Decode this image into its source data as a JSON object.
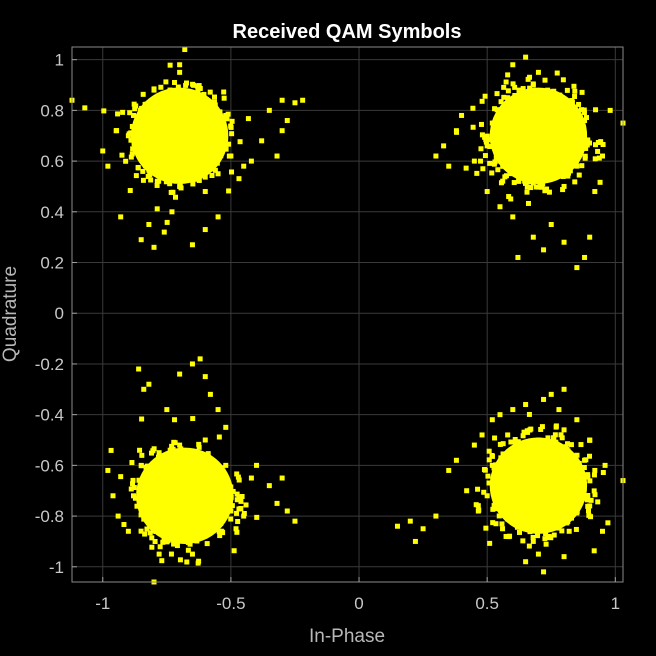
{
  "chart_data": {
    "type": "scatter",
    "title": "Received QAM Symbols",
    "xlabel": "In-Phase",
    "ylabel": "Quadrature",
    "xlim": [
      -1.12,
      1.03
    ],
    "ylim": [
      -1.06,
      1.05
    ],
    "xticks": [
      -1,
      -0.5,
      0,
      0.5,
      1
    ],
    "xtick_labels": [
      "-1",
      "-0.5",
      "0",
      "0.5",
      "1"
    ],
    "yticks": [
      1,
      0.8,
      0.6,
      0.4,
      0.2,
      0,
      -0.2,
      -0.4,
      -0.6,
      -0.8,
      -1
    ],
    "ytick_labels": [
      "1",
      "0.8",
      "0.6",
      "0.4",
      "0.2",
      "0",
      "-0.2",
      "-0.4",
      "-0.6",
      "-0.8",
      "-1"
    ],
    "grid": true,
    "background": "#000000",
    "marker_color": "#ffff00",
    "clusters": [
      {
        "name": "cluster-top-left",
        "center": [
          -0.7,
          0.7
        ],
        "core": [
          [
            -0.88,
            0.78
          ],
          [
            -0.85,
            0.62
          ],
          [
            -0.8,
            0.88
          ],
          [
            -0.78,
            0.55
          ],
          [
            -0.75,
            0.72
          ],
          [
            -0.72,
            0.91
          ],
          [
            -0.7,
            0.5
          ],
          [
            -0.68,
            0.8
          ],
          [
            -0.65,
            0.6
          ],
          [
            -0.62,
            0.85
          ],
          [
            -0.58,
            0.7
          ],
          [
            -0.55,
            0.55
          ],
          [
            -0.52,
            0.78
          ],
          [
            -0.9,
            0.7
          ],
          [
            -0.6,
            0.48
          ],
          [
            -0.7,
            0.95
          ]
        ],
        "outliers": [
          [
            -1.12,
            0.84
          ],
          [
            -1.07,
            0.81
          ],
          [
            -1.0,
            0.64
          ],
          [
            -0.98,
            0.58
          ],
          [
            -0.93,
            0.38
          ],
          [
            -0.85,
            0.29
          ],
          [
            -0.82,
            0.35
          ],
          [
            -0.8,
            0.26
          ],
          [
            -0.76,
            0.32
          ],
          [
            -0.73,
            0.4
          ],
          [
            -0.7,
            0.98
          ],
          [
            -0.68,
            1.04
          ],
          [
            -0.65,
            0.27
          ],
          [
            -0.6,
            0.33
          ],
          [
            -0.55,
            0.38
          ],
          [
            -0.5,
            0.62
          ],
          [
            -0.45,
            0.58
          ],
          [
            -0.42,
            0.6
          ],
          [
            -0.38,
            0.68
          ],
          [
            -0.35,
            0.8
          ],
          [
            -0.3,
            0.84
          ],
          [
            -0.28,
            0.76
          ],
          [
            -0.25,
            0.83
          ],
          [
            -0.22,
            0.84
          ],
          [
            -0.3,
            0.72
          ],
          [
            -0.32,
            0.62
          ]
        ]
      },
      {
        "name": "cluster-top-right",
        "center": [
          0.7,
          0.7
        ],
        "core": [
          [
            0.52,
            0.75
          ],
          [
            0.55,
            0.6
          ],
          [
            0.58,
            0.85
          ],
          [
            0.62,
            0.55
          ],
          [
            0.65,
            0.72
          ],
          [
            0.68,
            0.9
          ],
          [
            0.7,
            0.52
          ],
          [
            0.72,
            0.8
          ],
          [
            0.75,
            0.62
          ],
          [
            0.78,
            0.86
          ],
          [
            0.82,
            0.7
          ],
          [
            0.85,
            0.58
          ],
          [
            0.88,
            0.76
          ],
          [
            0.5,
            0.66
          ],
          [
            0.8,
            0.5
          ],
          [
            0.7,
            0.95
          ]
        ],
        "outliers": [
          [
            0.3,
            0.62
          ],
          [
            0.33,
            0.66
          ],
          [
            0.35,
            0.58
          ],
          [
            0.38,
            0.72
          ],
          [
            0.4,
            0.78
          ],
          [
            0.45,
            0.6
          ],
          [
            0.5,
            0.48
          ],
          [
            0.55,
            0.42
          ],
          [
            0.6,
            0.38
          ],
          [
            0.62,
            0.22
          ],
          [
            0.68,
            0.3
          ],
          [
            0.72,
            0.25
          ],
          [
            0.75,
            0.35
          ],
          [
            0.8,
            0.28
          ],
          [
            0.85,
            0.18
          ],
          [
            0.88,
            0.22
          ],
          [
            0.9,
            0.3
          ],
          [
            0.92,
            0.48
          ],
          [
            0.95,
            0.62
          ],
          [
            0.98,
            0.8
          ],
          [
            1.03,
            0.75
          ],
          [
            0.6,
            0.98
          ],
          [
            0.65,
            1.01
          ],
          [
            0.58,
            0.94
          ]
        ]
      },
      {
        "name": "cluster-bottom-left",
        "center": [
          -0.68,
          -0.72
        ],
        "core": [
          [
            -0.88,
            -0.72
          ],
          [
            -0.85,
            -0.6
          ],
          [
            -0.8,
            -0.85
          ],
          [
            -0.78,
            -0.55
          ],
          [
            -0.75,
            -0.74
          ],
          [
            -0.72,
            -0.9
          ],
          [
            -0.7,
            -0.52
          ],
          [
            -0.66,
            -0.8
          ],
          [
            -0.62,
            -0.6
          ],
          [
            -0.58,
            -0.85
          ],
          [
            -0.55,
            -0.7
          ],
          [
            -0.52,
            -0.6
          ],
          [
            -0.5,
            -0.78
          ],
          [
            -0.65,
            -0.95
          ],
          [
            -0.82,
            -0.65
          ],
          [
            -0.6,
            -0.5
          ]
        ],
        "outliers": [
          [
            -0.98,
            -0.62
          ],
          [
            -0.96,
            -0.72
          ],
          [
            -0.94,
            -0.8
          ],
          [
            -0.9,
            -0.86
          ],
          [
            -0.86,
            -0.22
          ],
          [
            -0.84,
            -0.3
          ],
          [
            -0.82,
            -0.28
          ],
          [
            -0.8,
            -1.06
          ],
          [
            -0.78,
            -0.95
          ],
          [
            -0.75,
            -0.38
          ],
          [
            -0.72,
            -0.42
          ],
          [
            -0.7,
            -0.24
          ],
          [
            -0.65,
            -0.2
          ],
          [
            -0.62,
            -0.18
          ],
          [
            -0.6,
            -0.25
          ],
          [
            -0.58,
            -0.32
          ],
          [
            -0.55,
            -0.38
          ],
          [
            -0.52,
            -0.45
          ],
          [
            -0.48,
            -0.85
          ],
          [
            -0.45,
            -0.8
          ],
          [
            -0.42,
            -0.65
          ],
          [
            -0.4,
            -0.6
          ],
          [
            -0.35,
            -0.68
          ],
          [
            -0.32,
            -0.75
          ],
          [
            -0.28,
            -0.78
          ],
          [
            -0.25,
            -0.82
          ],
          [
            -0.3,
            -0.65
          ]
        ]
      },
      {
        "name": "cluster-bottom-right",
        "center": [
          0.7,
          -0.68
        ],
        "core": [
          [
            0.5,
            -0.72
          ],
          [
            0.52,
            -0.6
          ],
          [
            0.56,
            -0.85
          ],
          [
            0.6,
            -0.55
          ],
          [
            0.64,
            -0.74
          ],
          [
            0.68,
            -0.9
          ],
          [
            0.7,
            -0.5
          ],
          [
            0.74,
            -0.8
          ],
          [
            0.78,
            -0.6
          ],
          [
            0.82,
            -0.86
          ],
          [
            0.85,
            -0.7
          ],
          [
            0.88,
            -0.58
          ],
          [
            0.9,
            -0.76
          ],
          [
            0.7,
            -0.95
          ],
          [
            0.58,
            -0.48
          ],
          [
            0.8,
            -0.46
          ]
        ],
        "outliers": [
          [
            0.15,
            -0.84
          ],
          [
            0.2,
            -0.82
          ],
          [
            0.22,
            -0.9
          ],
          [
            0.25,
            -0.85
          ],
          [
            0.3,
            -0.8
          ],
          [
            0.35,
            -0.62
          ],
          [
            0.38,
            -0.58
          ],
          [
            0.42,
            -0.7
          ],
          [
            0.45,
            -0.52
          ],
          [
            0.48,
            -0.48
          ],
          [
            0.52,
            -0.42
          ],
          [
            0.55,
            -0.4
          ],
          [
            0.6,
            -0.38
          ],
          [
            0.65,
            -0.36
          ],
          [
            0.72,
            -0.34
          ],
          [
            0.75,
            -0.32
          ],
          [
            0.78,
            -0.38
          ],
          [
            0.8,
            -0.3
          ],
          [
            0.85,
            -0.42
          ],
          [
            0.9,
            -0.5
          ],
          [
            0.92,
            -0.62
          ],
          [
            0.96,
            -0.6
          ],
          [
            1.03,
            -0.66
          ],
          [
            0.65,
            -0.98
          ],
          [
            0.72,
            -1.02
          ],
          [
            0.8,
            -0.96
          ],
          [
            0.95,
            -0.86
          ]
        ]
      }
    ]
  }
}
